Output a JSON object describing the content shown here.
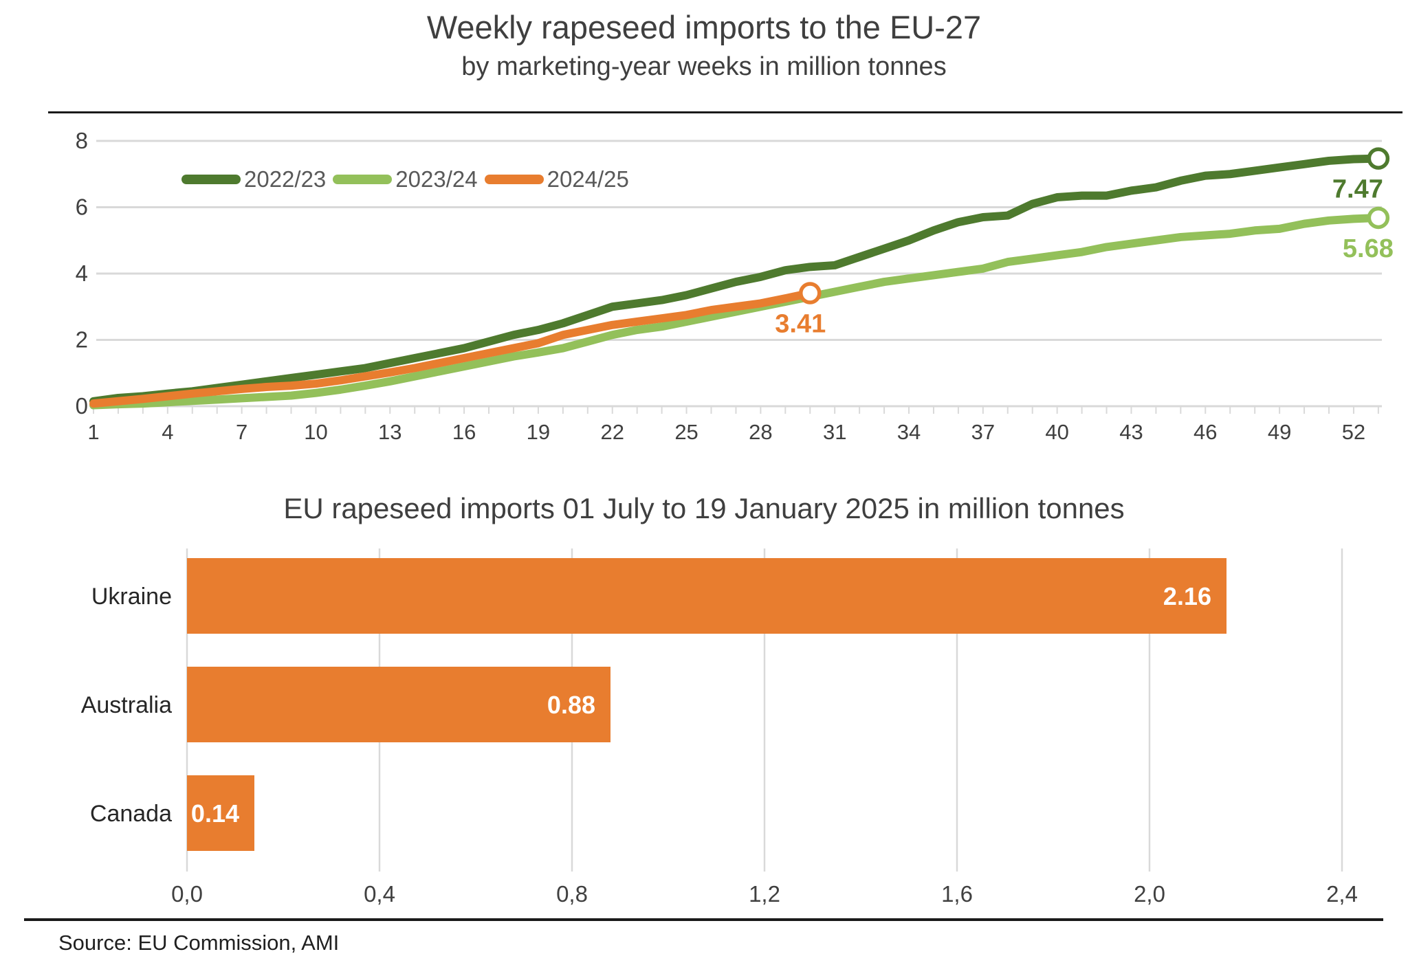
{
  "header": {
    "title": "Weekly rapeseed imports to the EU-27",
    "subtitle": "by marketing-year weeks in million tonnes"
  },
  "chart_data": [
    {
      "type": "line",
      "title": "Weekly rapeseed imports to the EU-27",
      "subtitle": "by marketing-year weeks in million tonnes",
      "xlabel": "marketing-year week",
      "ylabel": "million tonnes",
      "ylim": [
        0,
        8
      ],
      "y_ticks": [
        0,
        2,
        4,
        6,
        8
      ],
      "x_weeks_total": 53,
      "x_tick_labels": [
        1,
        4,
        7,
        10,
        13,
        16,
        19,
        22,
        25,
        28,
        31,
        34,
        37,
        40,
        43,
        46,
        49,
        52
      ],
      "grid": "horizontal",
      "legend_position": "top-left-inside",
      "colors": {
        "gridline": "#d9d9d9",
        "axis_text": "#404040",
        "legend_text": "#595959"
      },
      "series": [
        {
          "name": "2022/23",
          "color": "#4e7a2e",
          "end_label": "7.47",
          "end_value": 7.47,
          "start_week": 1,
          "values": [
            0.15,
            0.25,
            0.3,
            0.38,
            0.45,
            0.55,
            0.65,
            0.75,
            0.85,
            0.95,
            1.05,
            1.15,
            1.3,
            1.45,
            1.6,
            1.75,
            1.95,
            2.15,
            2.3,
            2.5,
            2.75,
            3.0,
            3.1,
            3.2,
            3.35,
            3.55,
            3.75,
            3.9,
            4.1,
            4.2,
            4.25,
            4.5,
            4.75,
            5.0,
            5.3,
            5.55,
            5.7,
            5.75,
            6.1,
            6.3,
            6.35,
            6.35,
            6.5,
            6.6,
            6.8,
            6.95,
            7.0,
            7.1,
            7.2,
            7.3,
            7.4,
            7.45,
            7.47
          ]
        },
        {
          "name": "2023/24",
          "color": "#93c05a",
          "end_label": "5.68",
          "end_value": 5.68,
          "start_week": 1,
          "values": [
            0.03,
            0.06,
            0.08,
            0.12,
            0.16,
            0.2,
            0.24,
            0.28,
            0.32,
            0.4,
            0.5,
            0.62,
            0.75,
            0.9,
            1.05,
            1.2,
            1.35,
            1.5,
            1.62,
            1.75,
            1.95,
            2.15,
            2.3,
            2.4,
            2.55,
            2.7,
            2.85,
            3.0,
            3.15,
            3.3,
            3.45,
            3.6,
            3.75,
            3.85,
            3.95,
            4.05,
            4.15,
            4.35,
            4.45,
            4.55,
            4.65,
            4.8,
            4.9,
            5.0,
            5.1,
            5.15,
            5.2,
            5.3,
            5.35,
            5.5,
            5.6,
            5.65,
            5.68
          ]
        },
        {
          "name": "2024/25",
          "color": "#e87d2f",
          "end_label": "3.41",
          "end_value": 3.41,
          "start_week": 1,
          "values": [
            0.08,
            0.15,
            0.22,
            0.3,
            0.38,
            0.45,
            0.52,
            0.58,
            0.62,
            0.68,
            0.78,
            0.9,
            1.02,
            1.15,
            1.3,
            1.45,
            1.6,
            1.75,
            1.9,
            2.15,
            2.3,
            2.45,
            2.55,
            2.65,
            2.75,
            2.9,
            3.0,
            3.1,
            3.25,
            3.41
          ]
        }
      ]
    },
    {
      "type": "bar",
      "title": "EU rapeseed imports 01 July to 19 January 2025 in million tonnes",
      "orientation": "horizontal",
      "categories": [
        "Ukraine",
        "Australia",
        "Canada"
      ],
      "values": [
        2.16,
        0.88,
        0.14
      ],
      "value_labels": [
        "2.16",
        "0.88",
        "0.14"
      ],
      "bar_color": "#e87d2f",
      "value_label_color": "#ffffff",
      "xlim": [
        0,
        2.4
      ],
      "x_tick_labels": [
        "0,0",
        "0,4",
        "0,8",
        "1,2",
        "1,6",
        "2,0",
        "2,4"
      ],
      "grid": "vertical",
      "colors": {
        "gridline": "#d9d9d9",
        "axis_text": "#404040",
        "category_text": "#262626"
      }
    }
  ],
  "footer": {
    "source": "Source: EU Commission, AMI"
  }
}
